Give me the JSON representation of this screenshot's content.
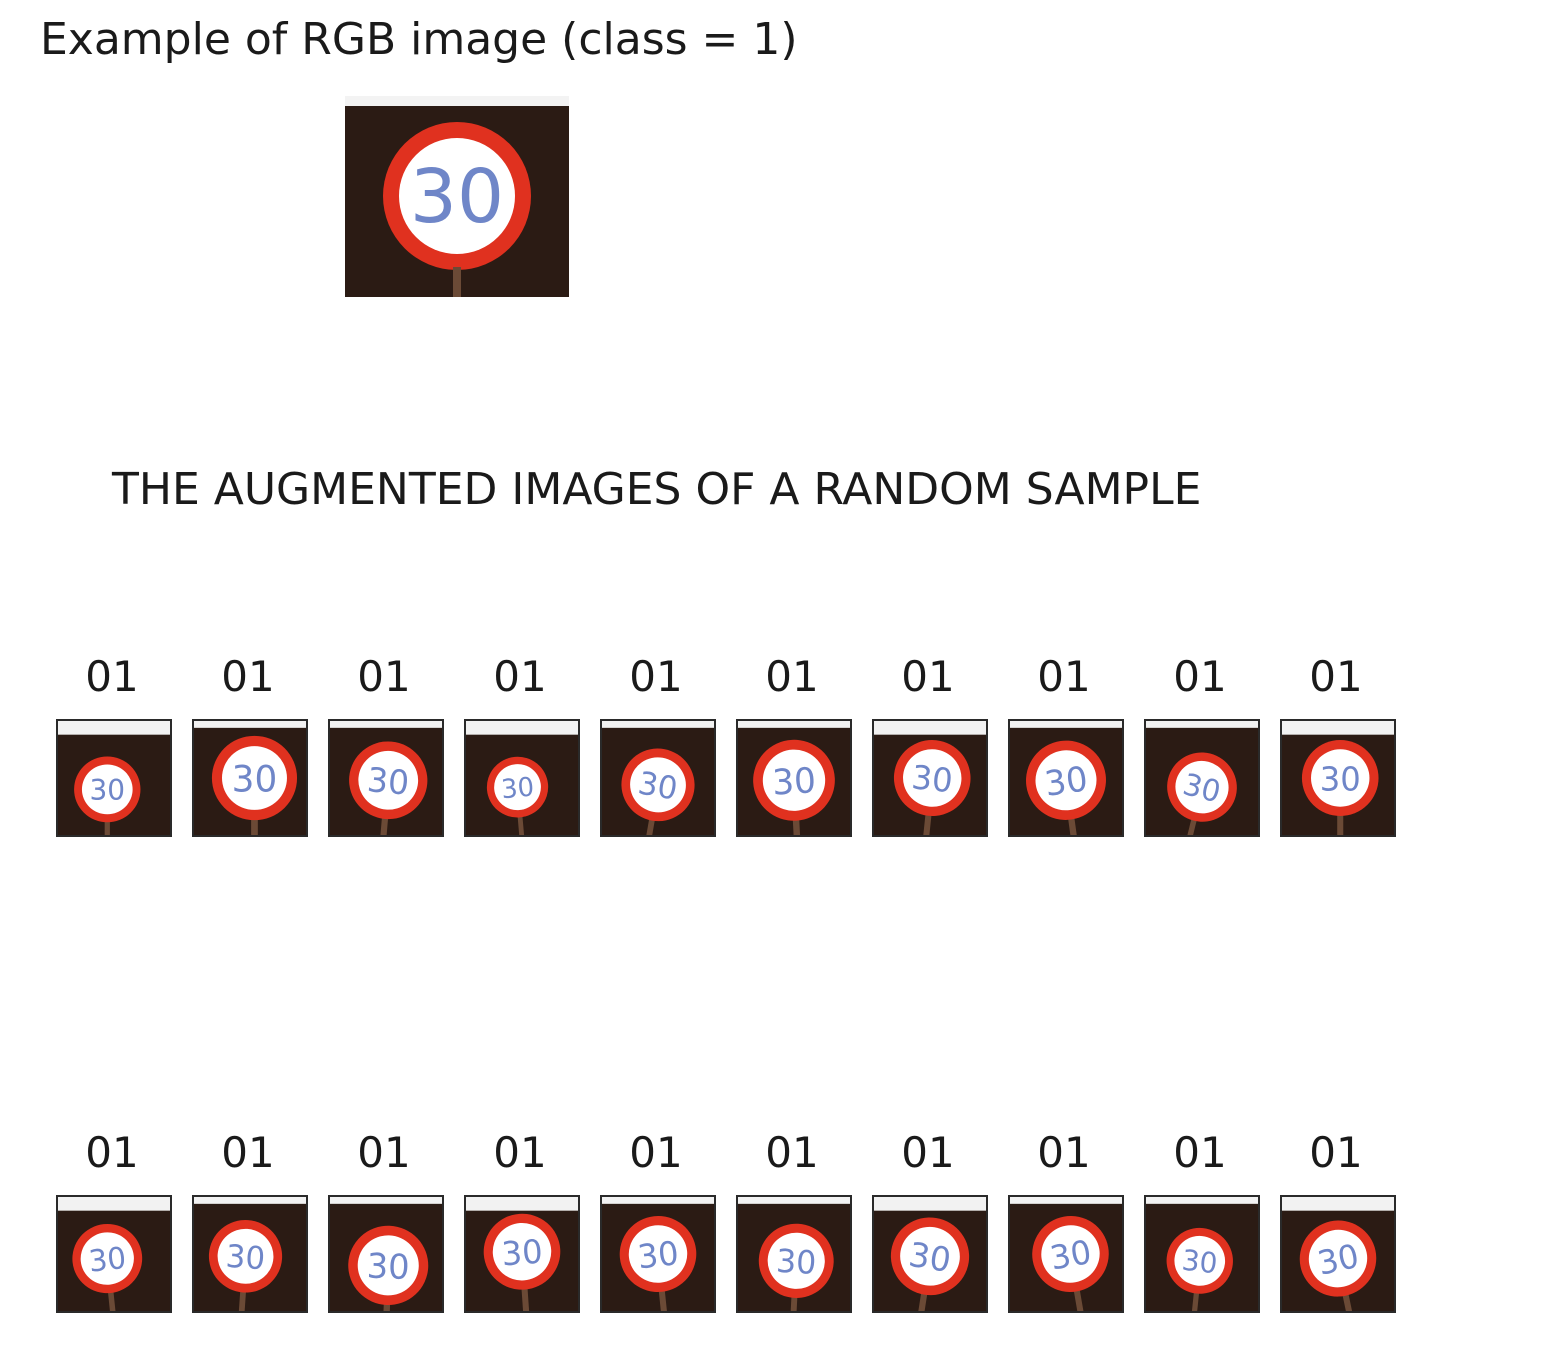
{
  "figure": {
    "example_title": "Example of RGB image (class = 1)",
    "example_sign_text": "30",
    "section_title": "THE AUGMENTED IMAGES OF A RANDOM SAMPLE"
  },
  "augmented": {
    "rows": [
      {
        "tiles": [
          {
            "label": "01",
            "sign_text": "30"
          },
          {
            "label": "01",
            "sign_text": "30"
          },
          {
            "label": "01",
            "sign_text": "30"
          },
          {
            "label": "01",
            "sign_text": "30"
          },
          {
            "label": "01",
            "sign_text": "30"
          },
          {
            "label": "01",
            "sign_text": "30"
          },
          {
            "label": "01",
            "sign_text": "30"
          },
          {
            "label": "01",
            "sign_text": "30"
          },
          {
            "label": "01",
            "sign_text": "30"
          },
          {
            "label": "01",
            "sign_text": "30"
          }
        ]
      },
      {
        "tiles": [
          {
            "label": "01",
            "sign_text": "30"
          },
          {
            "label": "01",
            "sign_text": "30"
          },
          {
            "label": "01",
            "sign_text": "30"
          },
          {
            "label": "01",
            "sign_text": "30"
          },
          {
            "label": "01",
            "sign_text": "30"
          },
          {
            "label": "01",
            "sign_text": "30"
          },
          {
            "label": "01",
            "sign_text": "30"
          },
          {
            "label": "01",
            "sign_text": "30"
          },
          {
            "label": "01",
            "sign_text": "30"
          },
          {
            "label": "01",
            "sign_text": "30"
          }
        ]
      }
    ]
  },
  "colors": {
    "sign_red": "#e0311f",
    "sign_white": "#ffffff",
    "background_dark": "#2b1b14",
    "digit_blue": "#6f86c8"
  }
}
